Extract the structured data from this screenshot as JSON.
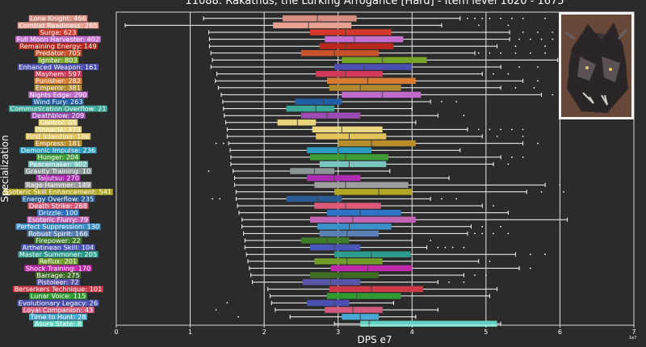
{
  "chart_data": {
    "type": "boxplot",
    "title": "11088: Rakathus, the Lurking Arrogance [Hard] - Item level 1620 - 1675",
    "xlabel": "DPS e7",
    "ylabel": "Specialization",
    "x_offset_label": "1e7",
    "xlim": [
      0,
      7
    ],
    "xticks": [
      "0",
      "1",
      "2",
      "3",
      "4",
      "5",
      "6",
      "7"
    ],
    "grid": "vertical",
    "thumbnail": "monster-portrait",
    "series": [
      {
        "label": "Lone Knight: 466",
        "color": "#d98f82",
        "whislo": 1.18,
        "q1": 2.25,
        "med": 2.72,
        "q3": 3.25,
        "whishi": 4.65,
        "fliers": [
          4.75,
          4.85,
          4.95,
          5.05,
          5.2,
          5.35,
          5.5,
          5.8,
          6.5
        ]
      },
      {
        "label": "Combat Readiness: 265",
        "color": "#e8a092",
        "whislo": 0.12,
        "q1": 2.12,
        "med": 2.6,
        "q3": 3.18,
        "whishi": 4.4,
        "fliers": [
          0.15,
          4.9,
          5.3
        ]
      },
      {
        "label": "Surge: 623",
        "color": "#d2392c",
        "whislo": 1.25,
        "q1": 2.62,
        "med": 3.1,
        "q3": 3.72,
        "whishi": 5.32,
        "fliers": [
          5.5,
          5.7,
          5.9
        ]
      },
      {
        "label": "Full Moon Harvester: 402",
        "color": "#c56fd0",
        "whislo": 1.26,
        "q1": 2.82,
        "med": 3.22,
        "q3": 3.88,
        "whishi": 5.32,
        "fliers": [
          5.45,
          5.6,
          5.75,
          5.9
        ]
      },
      {
        "label": "Remaining Energy: 149",
        "color": "#b9271d",
        "whislo": 1.26,
        "q1": 2.75,
        "med": 3.1,
        "q3": 3.75,
        "whishi": 5.15,
        "fliers": [
          5.4,
          5.8
        ]
      },
      {
        "label": "Predator: 705",
        "color": "#c9522c",
        "whislo": 1.28,
        "q1": 2.5,
        "med": 2.95,
        "q3": 3.55,
        "whishi": 4.85,
        "fliers": [
          4.9,
          5.05,
          5.2,
          5.4,
          5.6,
          5.8
        ]
      },
      {
        "label": "Igniter: 803",
        "color": "#76a52a",
        "whislo": 1.3,
        "q1": 3.05,
        "med": 3.6,
        "q3": 4.2,
        "whishi": 5.97,
        "fliers": [
          6.2
        ]
      },
      {
        "label": "Enhanced Weapon: 161",
        "color": "#4b4fb4",
        "whislo": 1.28,
        "q1": 2.95,
        "med": 3.35,
        "q3": 4.0,
        "whishi": 5.2,
        "fliers": [
          5.45,
          5.7
        ]
      },
      {
        "label": "Mayhem: 597",
        "color": "#d23a58",
        "whislo": 1.36,
        "q1": 2.7,
        "med": 3.1,
        "q3": 3.6,
        "whishi": 4.95,
        "fliers": [
          5.1,
          5.3
        ]
      },
      {
        "label": "Punisher: 282",
        "color": "#d87b35",
        "whislo": 1.34,
        "q1": 2.85,
        "med": 3.4,
        "q3": 4.05,
        "whishi": 5.5,
        "fliers": [
          5.7
        ]
      },
      {
        "label": "Emperor: 381",
        "color": "#b08a2d",
        "whislo": 1.38,
        "q1": 2.88,
        "med": 3.3,
        "q3": 3.85,
        "whishi": 5.2,
        "fliers": [
          5.4,
          5.65
        ]
      },
      {
        "label": "Nights Edge: 290",
        "color": "#c06acb",
        "whislo": 1.42,
        "q1": 3.05,
        "med": 3.6,
        "q3": 4.12,
        "whishi": 5.75,
        "fliers": [
          5.9,
          6.05,
          6.15,
          6.3
        ]
      },
      {
        "label": "Wind Fury: 263",
        "color": "#2160a6",
        "whislo": 1.44,
        "q1": 2.42,
        "med": 2.8,
        "q3": 3.05,
        "whishi": 4.25,
        "fliers": [
          4.4,
          4.6
        ]
      },
      {
        "label": "Communication Overflow: 21",
        "color": "#3aa79a",
        "whislo": 1.45,
        "q1": 2.3,
        "med": 2.7,
        "q3": 2.95,
        "whishi": 4.0,
        "fliers": []
      },
      {
        "label": "Deathblow: 209",
        "color": "#9a4cb2",
        "whislo": 1.46,
        "q1": 2.5,
        "med": 2.85,
        "q3": 3.3,
        "whishi": 4.35,
        "fliers": [
          4.7
        ]
      },
      {
        "label": "Control: 65",
        "color": "#e8d27a",
        "whislo": 1.48,
        "q1": 2.18,
        "med": 2.45,
        "q3": 2.7,
        "whishi": 4.05,
        "fliers": []
      },
      {
        "label": "Pinnacle: 373",
        "color": "#e8d87f",
        "whislo": 1.5,
        "q1": 2.65,
        "med": 3.05,
        "q3": 3.6,
        "whishi": 4.75,
        "fliers": [
          4.9,
          5.05,
          5.2,
          5.35,
          5.5
        ]
      },
      {
        "label": "First Intention: 186",
        "color": "#e3c45a",
        "whislo": 1.5,
        "q1": 2.7,
        "med": 3.15,
        "q3": 3.65,
        "whishi": 4.95,
        "fliers": [
          5.15,
          5.5
        ]
      },
      {
        "label": "Empress: 181",
        "color": "#b88e2c",
        "whislo": 1.52,
        "q1": 3.0,
        "med": 3.45,
        "q3": 4.05,
        "whishi": 5.5,
        "fliers": [
          1.35,
          1.45,
          5.7
        ]
      },
      {
        "label": "Demonic Impulse: 236",
        "color": "#2b9cc0",
        "whislo": 1.54,
        "q1": 2.58,
        "med": 3.0,
        "q3": 3.45,
        "whishi": 4.65,
        "fliers": []
      },
      {
        "label": "Hunger: 204",
        "color": "#3e9d36",
        "whislo": 1.55,
        "q1": 2.62,
        "med": 3.1,
        "q3": 3.68,
        "whishi": 5.2,
        "fliers": [
          5.35,
          5.5
        ]
      },
      {
        "label": "Peacemaker: 902",
        "color": "#79c4c0",
        "whislo": 1.55,
        "q1": 2.75,
        "med": 3.15,
        "q3": 3.65,
        "whishi": 5.1,
        "fliers": [
          5.3
        ]
      },
      {
        "label": "Gravity Training: 10",
        "color": "#8a9698",
        "whislo": 1.58,
        "q1": 2.35,
        "med": 2.68,
        "q3": 2.95,
        "whishi": 3.7,
        "fliers": [
          1.25
        ]
      },
      {
        "label": "Taijutsu: 270",
        "color": "#ae2cb4",
        "whislo": 1.6,
        "q1": 2.58,
        "med": 2.95,
        "q3": 3.3,
        "whishi": 4.5,
        "fliers": []
      },
      {
        "label": "Rage Hammer: 149",
        "color": "#9e9e9e",
        "whislo": 1.6,
        "q1": 2.68,
        "med": 3.1,
        "q3": 3.95,
        "whishi": 5.8,
        "fliers": [
          6.0
        ]
      },
      {
        "label": "Esoteric Skill Enhancement: 541",
        "color": "#b1a726",
        "whislo": 1.62,
        "q1": 2.95,
        "med": 3.55,
        "q3": 4.0,
        "whishi": 5.55,
        "fliers": [
          5.75,
          6.05
        ]
      },
      {
        "label": "Energy Overflow: 235",
        "color": "#2c5c94",
        "whislo": 1.62,
        "q1": 2.3,
        "med": 2.72,
        "q3": 3.05,
        "whishi": 4.25,
        "fliers": [
          1.3,
          1.4,
          4.4,
          4.6
        ]
      },
      {
        "label": "Death Strike: 268",
        "color": "#de5a7a",
        "whislo": 1.64,
        "q1": 2.68,
        "med": 3.1,
        "q3": 3.58,
        "whishi": 4.95,
        "fliers": [
          5.1
        ]
      },
      {
        "label": "Drizzle: 100",
        "color": "#2e74c6",
        "whislo": 1.66,
        "q1": 2.85,
        "med": 3.3,
        "q3": 3.85,
        "whishi": 5.3,
        "fliers": []
      },
      {
        "label": "Esoteric Flurry: 79",
        "color": "#c364b4",
        "whislo": 1.7,
        "q1": 2.62,
        "med": 3.2,
        "q3": 4.05,
        "whishi": 6.1,
        "fliers": []
      },
      {
        "label": "Perfect Suppression: 130",
        "color": "#3c8fca",
        "whislo": 1.7,
        "q1": 2.72,
        "med": 3.15,
        "q3": 3.72,
        "whishi": 4.8,
        "fliers": [
          4.95,
          5.2
        ]
      },
      {
        "label": "Robust Spirit: 166",
        "color": "#5a7fb5",
        "whislo": 1.72,
        "q1": 2.75,
        "med": 3.12,
        "q3": 3.55,
        "whishi": 4.75,
        "fliers": [
          4.85,
          4.95,
          5.1,
          5.3
        ]
      },
      {
        "label": "Firepower: 22",
        "color": "#3e7e2b",
        "whislo": 1.74,
        "q1": 2.5,
        "med": 2.85,
        "q3": 3.15,
        "whishi": 4.0,
        "fliers": [
          4.25
        ]
      },
      {
        "label": "Arthetinean Skill: 104",
        "color": "#4a55b8",
        "whislo": 1.74,
        "q1": 2.62,
        "med": 2.95,
        "q3": 3.3,
        "whishi": 4.2,
        "fliers": [
          4.35,
          4.45,
          4.55,
          4.7
        ]
      },
      {
        "label": "Master Summoner: 205",
        "color": "#2c9c8c",
        "whislo": 1.76,
        "q1": 2.95,
        "med": 3.45,
        "q3": 3.98,
        "whishi": 5.4,
        "fliers": [
          5.6,
          5.8
        ]
      },
      {
        "label": "Reflux: 201",
        "color": "#6e9e28",
        "whislo": 1.78,
        "q1": 2.68,
        "med": 3.12,
        "q3": 3.6,
        "whishi": 4.9,
        "fliers": [
          5.05
        ]
      },
      {
        "label": "Shock Training: 170",
        "color": "#c02aa8",
        "whislo": 1.8,
        "q1": 2.9,
        "med": 3.4,
        "q3": 4.0,
        "whishi": 5.45,
        "fliers": [
          5.6
        ]
      },
      {
        "label": "Barrage: 275",
        "color": "#3f6d25",
        "whislo": 1.82,
        "q1": 2.62,
        "med": 3.05,
        "q3": 3.55,
        "whishi": 4.7,
        "fliers": [
          4.85,
          5.0
        ]
      },
      {
        "label": "Pistoleer: 72",
        "color": "#5a55a8",
        "whislo": 1.84,
        "q1": 2.52,
        "med": 2.9,
        "q3": 3.3,
        "whishi": 4.35,
        "fliers": [
          4.5,
          4.7
        ]
      },
      {
        "label": "Berserkers Technique: 101",
        "color": "#cc3a48",
        "whislo": 2.05,
        "q1": 2.88,
        "med": 3.45,
        "q3": 4.15,
        "whishi": 5.15,
        "fliers": []
      },
      {
        "label": "Lunar Voice: 115",
        "color": "#2f9a32",
        "whislo": 2.08,
        "q1": 2.85,
        "med": 3.25,
        "q3": 3.85,
        "whishi": 5.05,
        "fliers": []
      },
      {
        "label": "Evolutionary Legacy: 26",
        "color": "#4a50b0",
        "whislo": 2.1,
        "q1": 2.58,
        "med": 2.95,
        "q3": 3.15,
        "whishi": 3.75,
        "fliers": [
          1.5
        ]
      },
      {
        "label": "Loyal Companion: 43",
        "color": "#d25a7e",
        "whislo": 2.15,
        "q1": 2.82,
        "med": 3.2,
        "q3": 3.6,
        "whishi": 4.35,
        "fliers": [
          1.35
        ]
      },
      {
        "label": "Time to Hunt: 28",
        "color": "#48a8d2",
        "whislo": 2.35,
        "q1": 3.05,
        "med": 3.3,
        "q3": 3.55,
        "whishi": 4.05,
        "fliers": [
          1.65
        ]
      },
      {
        "label": "Asura State: 8",
        "color": "#5fd2c2",
        "whislo": 2.95,
        "q1": 3.3,
        "med": 3.42,
        "q3": 5.15,
        "whishi": 5.2,
        "fliers": []
      }
    ]
  }
}
